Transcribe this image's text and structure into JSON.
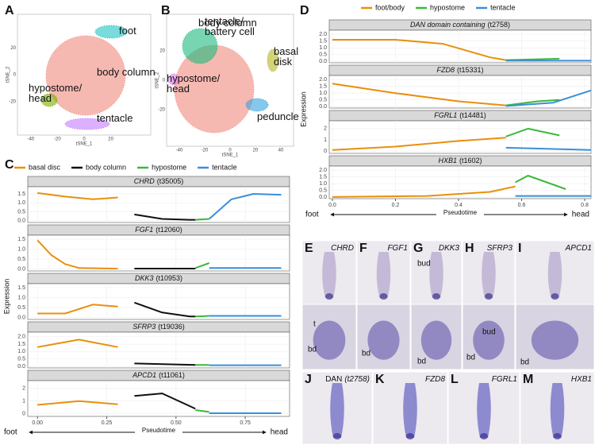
{
  "figure": {
    "tsne_panels": [
      {
        "letter": "A",
        "xlabel": "tSNE_1",
        "ylabel": "tSNE_2",
        "xlim": [
          -50,
          50
        ],
        "ylim": [
          -45,
          45
        ],
        "xticks": [
          -40,
          -20,
          0,
          20
        ],
        "yticks": [
          -20,
          0,
          20
        ],
        "clusters": [
          {
            "name": [
              "body column"
            ],
            "color": "#f08a7e"
          },
          {
            "name": [
              "foot"
            ],
            "color": "#22c3c3"
          },
          {
            "name": [
              "hypostome/",
              "head"
            ],
            "color": "#7cae00"
          },
          {
            "name": [
              "tentacle"
            ],
            "color": "#c77cff"
          }
        ]
      },
      {
        "letter": "B",
        "xlabel": "tSNE_1",
        "ylabel": "tSNE_2",
        "xlim": [
          -50,
          50
        ],
        "ylim": [
          -45,
          45
        ],
        "xticks": [
          -40,
          -20,
          0,
          20,
          40
        ],
        "yticks": [
          -20,
          0,
          20
        ],
        "clusters": [
          {
            "name": [
              "body column"
            ],
            "color": "#f08a7e"
          },
          {
            "name": [
              "tentacle/",
              "battery cell"
            ],
            "color": "#1dbb7d"
          },
          {
            "name": [
              "basal",
              "disk"
            ],
            "color": "#b5b51f"
          },
          {
            "name": [
              "hypostome/",
              "head"
            ],
            "color": "#e07be8"
          },
          {
            "name": [
              "peduncle"
            ],
            "color": "#35a2e0"
          }
        ]
      }
    ],
    "images": [
      {
        "letter": "E",
        "gene": "CHRD",
        "bottom_labels": [
          "t",
          "bd"
        ]
      },
      {
        "letter": "F",
        "gene": "FGF1",
        "bottom_labels": [
          "bd"
        ]
      },
      {
        "letter": "G",
        "gene": "DKK3",
        "top_labels": [
          "bud"
        ],
        "bottom_labels": [
          "bd"
        ]
      },
      {
        "letter": "H",
        "gene": "SFRP3",
        "bottom_labels": [
          "bud",
          "bd"
        ]
      },
      {
        "letter": "I",
        "gene": "APCD1",
        "bottom_labels": [
          "bd"
        ]
      },
      {
        "letter": "J",
        "gene": "DAN",
        "id": "(t2758)"
      },
      {
        "letter": "K",
        "gene": "FZD8"
      },
      {
        "letter": "L",
        "gene": "FGRL1"
      },
      {
        "letter": "M",
        "gene": "HXB1"
      }
    ]
  },
  "chart_data": [
    {
      "type": "line",
      "letter": "C",
      "ylabel": "Expression",
      "xlabel": "Pseudotime",
      "x_left": "foot",
      "x_right": "head",
      "xlim": [
        -0.035,
        0.91
      ],
      "xticks": [
        {
          "value": 0,
          "label": "0.00"
        },
        0.25,
        {
          "value": 0.5,
          "label": "0.50"
        },
        0.75
      ],
      "series": [
        {
          "name": "basal disc",
          "color": "#e8900c"
        },
        {
          "name": "body column",
          "color": "#111111"
        },
        {
          "name": "hypostome",
          "color": "#3cb93c"
        },
        {
          "name": "tentacle",
          "color": "#3a8fd9"
        }
      ],
      "panels": [
        {
          "gene": "CHRD",
          "id": "(t35005)",
          "ylim": [
            -0.1,
            1.9
          ],
          "yticks": [
            {
              "value": 0,
              "label": "0.0"
            },
            0.5,
            {
              "value": 1,
              "label": "1.0"
            },
            1.5
          ],
          "curves": [
            {
              "x": [
                0,
                0.1,
                0.2,
                0.29
              ],
              "values": [
                1.55,
                1.35,
                1.2,
                1.3
              ]
            },
            {
              "x": [
                0.35,
                0.45,
                0.55,
                0.57
              ],
              "values": [
                0.35,
                0.1,
                0.05,
                0.05
              ]
            },
            {
              "x": [
                0.57,
                0.62
              ],
              "values": [
                0.05,
                0.1
              ]
            },
            {
              "x": [
                0.62,
                0.7,
                0.78,
                0.88
              ],
              "values": [
                0.1,
                1.2,
                1.5,
                1.45
              ]
            }
          ]
        },
        {
          "gene": "FGF1",
          "id": "(t12060)",
          "ylim": [
            -0.1,
            1.7
          ],
          "yticks": [
            {
              "value": 0,
              "label": "0.0"
            },
            0.5,
            {
              "value": 1,
              "label": "1.0"
            },
            1.5
          ],
          "curves": [
            {
              "x": [
                0,
                0.05,
                0.1,
                0.15,
                0.29
              ],
              "values": [
                1.45,
                0.7,
                0.25,
                0.05,
                0.02
              ]
            },
            {
              "x": [
                0.35,
                0.57
              ],
              "values": [
                0.02,
                0.02
              ]
            },
            {
              "x": [
                0.57,
                0.62
              ],
              "values": [
                0.05,
                0.3
              ]
            },
            {
              "x": [
                0.62,
                0.88
              ],
              "values": [
                0.05,
                0.05
              ]
            }
          ]
        },
        {
          "gene": "DKK3",
          "id": "(t10953)",
          "ylim": [
            -0.1,
            1.7
          ],
          "yticks": [
            {
              "value": 0,
              "label": "0.0"
            },
            0.5,
            {
              "value": 1,
              "label": "1.0"
            },
            1.5
          ],
          "curves": [
            {
              "x": [
                0,
                0.1,
                0.2,
                0.29
              ],
              "values": [
                0.2,
                0.2,
                0.65,
                0.55
              ]
            },
            {
              "x": [
                0.35,
                0.45,
                0.55,
                0.57
              ],
              "values": [
                0.75,
                0.25,
                0.05,
                0.05
              ]
            },
            {
              "x": [
                0.57,
                0.62
              ],
              "values": [
                0.05,
                0.08
              ]
            },
            {
              "x": [
                0.62,
                0.88
              ],
              "values": [
                0.08,
                0.08
              ]
            }
          ]
        },
        {
          "gene": "SFRP3",
          "id": "(t19036)",
          "ylim": [
            -0.1,
            2.3
          ],
          "yticks": [
            {
              "value": 0,
              "label": "0.0"
            },
            0.5,
            {
              "value": 1,
              "label": "1.0"
            },
            1.5,
            {
              "value": 2,
              "label": "2.0"
            }
          ],
          "curves": [
            {
              "x": [
                0,
                0.15,
                0.29
              ],
              "values": [
                1.3,
                1.8,
                1.3
              ]
            },
            {
              "x": [
                0.35,
                0.57
              ],
              "values": [
                0.2,
                0.1
              ]
            },
            {
              "x": [
                0.57,
                0.62
              ],
              "values": [
                0.1,
                0.1
              ]
            },
            {
              "x": [
                0.62,
                0.88
              ],
              "values": [
                0.08,
                0.08
              ]
            }
          ]
        },
        {
          "gene": "APCD1",
          "id": "(t11061)",
          "ylim": [
            -0.2,
            2.6
          ],
          "yticks": [
            0,
            1,
            2
          ],
          "curves": [
            {
              "x": [
                0,
                0.15,
                0.29
              ],
              "values": [
                0.7,
                1.0,
                0.75
              ]
            },
            {
              "x": [
                0.35,
                0.45,
                0.55,
                0.57
              ],
              "values": [
                1.4,
                1.6,
                0.6,
                0.4
              ]
            },
            {
              "x": [
                0.57,
                0.62
              ],
              "values": [
                0.3,
                0.15
              ]
            },
            {
              "x": [
                0.62,
                0.88
              ],
              "values": [
                0.05,
                0.05
              ]
            }
          ]
        }
      ]
    },
    {
      "type": "line",
      "letter": "D",
      "ylabel": "Expression",
      "xlabel": "Pseudotime",
      "x_left": "foot",
      "x_right": "head",
      "xlim": [
        -0.01,
        0.82
      ],
      "xticks": [
        {
          "value": 0,
          "label": "0.0"
        },
        0.2,
        0.4,
        0.6,
        0.8
      ],
      "series": [
        {
          "name": "foot/body",
          "color": "#e8900c"
        },
        {
          "name": "hypostome",
          "color": "#3cb93c"
        },
        {
          "name": "tentacle",
          "color": "#3a8fd9"
        }
      ],
      "panels": [
        {
          "gene": "DAN domain containing",
          "id": "(t2758)",
          "ylim": [
            -0.1,
            2.3
          ],
          "yticks": [
            {
              "value": 0,
              "label": "0.0"
            },
            0.5,
            {
              "value": 1,
              "label": "1.0"
            },
            1.5,
            {
              "value": 2,
              "label": "2.0"
            }
          ],
          "curves": [
            {
              "x": [
                0,
                0.2,
                0.35,
                0.5,
                0.55
              ],
              "values": [
                1.6,
                1.6,
                1.3,
                0.3,
                0.1
              ]
            },
            {
              "x": [
                0.55,
                0.72
              ],
              "values": [
                0.1,
                0.2
              ]
            },
            {
              "x": [
                0.55,
                0.82
              ],
              "values": [
                0.05,
                0.05
              ]
            }
          ]
        },
        {
          "gene": "FZD8",
          "id": "(t15331)",
          "ylim": [
            -0.1,
            2.3
          ],
          "yticks": [
            {
              "value": 0,
              "label": "0.0"
            },
            0.5,
            {
              "value": 1,
              "label": "1.0"
            },
            1.5,
            {
              "value": 2,
              "label": "2.0"
            }
          ],
          "curves": [
            {
              "x": [
                0,
                0.2,
                0.4,
                0.55
              ],
              "values": [
                1.7,
                1.0,
                0.4,
                0.1
              ]
            },
            {
              "x": [
                0.55,
                0.65,
                0.72
              ],
              "values": [
                0.1,
                0.4,
                0.5
              ]
            },
            {
              "x": [
                0.55,
                0.7,
                0.82
              ],
              "values": [
                0.05,
                0.3,
                1.2
              ]
            }
          ]
        },
        {
          "gene": "FGRL1",
          "id": "(t14481)",
          "ylim": [
            -0.2,
            2.7
          ],
          "yticks": [
            0,
            1,
            2
          ],
          "curves": [
            {
              "x": [
                0,
                0.2,
                0.4,
                0.55
              ],
              "values": [
                0.1,
                0.4,
                0.9,
                1.2
              ]
            },
            {
              "x": [
                0.55,
                0.62,
                0.72
              ],
              "values": [
                1.3,
                2.0,
                1.4
              ]
            },
            {
              "x": [
                0.55,
                0.82
              ],
              "values": [
                0.3,
                0.1
              ]
            }
          ]
        },
        {
          "gene": "HXB1",
          "id": "(t1602)",
          "ylim": [
            -0.1,
            2.3
          ],
          "yticks": [
            {
              "value": 0,
              "label": "0.0"
            },
            0.5,
            {
              "value": 1,
              "label": "1.0"
            },
            1.5,
            {
              "value": 2,
              "label": "2.0"
            }
          ],
          "curves": [
            {
              "x": [
                0,
                0.3,
                0.5,
                0.58
              ],
              "values": [
                0.02,
                0.1,
                0.4,
                0.8
              ]
            },
            {
              "x": [
                0.58,
                0.62,
                0.74
              ],
              "values": [
                1.1,
                1.6,
                0.6
              ]
            },
            {
              "x": [
                0.58,
                0.82
              ],
              "values": [
                0.1,
                0.1
              ]
            }
          ]
        }
      ]
    }
  ]
}
